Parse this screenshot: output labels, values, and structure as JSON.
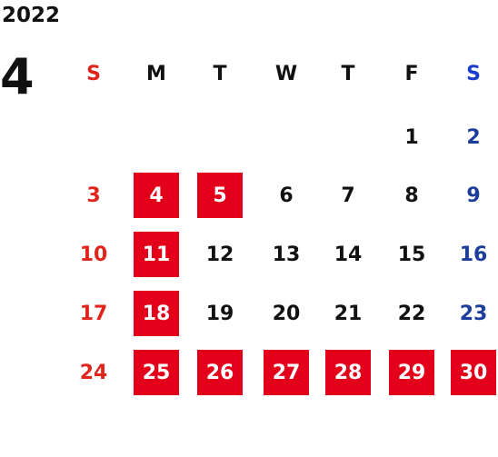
{
  "year": "2022",
  "month": "4",
  "weekdays": [
    "S",
    "M",
    "T",
    "W",
    "T",
    "F",
    "S"
  ],
  "colors": {
    "sunday": "#e0261c",
    "saturday": "#1c3d99",
    "weekday": "#111111",
    "highlight_bg": "#e2001a",
    "highlight_text": "#ffffff",
    "saturday_header": "#1a3ccf"
  },
  "weeks": [
    [
      null,
      null,
      null,
      null,
      null,
      "1",
      "2"
    ],
    [
      "3",
      "4",
      "5",
      "6",
      "7",
      "8",
      "9"
    ],
    [
      "10",
      "11",
      "12",
      "13",
      "14",
      "15",
      "16"
    ],
    [
      "17",
      "18",
      "19",
      "20",
      "21",
      "22",
      "23"
    ],
    [
      "24",
      "25",
      "26",
      "27",
      "28",
      "29",
      "30"
    ]
  ],
  "highlighted_days": [
    "4",
    "5",
    "11",
    "18",
    "25",
    "26",
    "27",
    "28",
    "29",
    "30"
  ]
}
